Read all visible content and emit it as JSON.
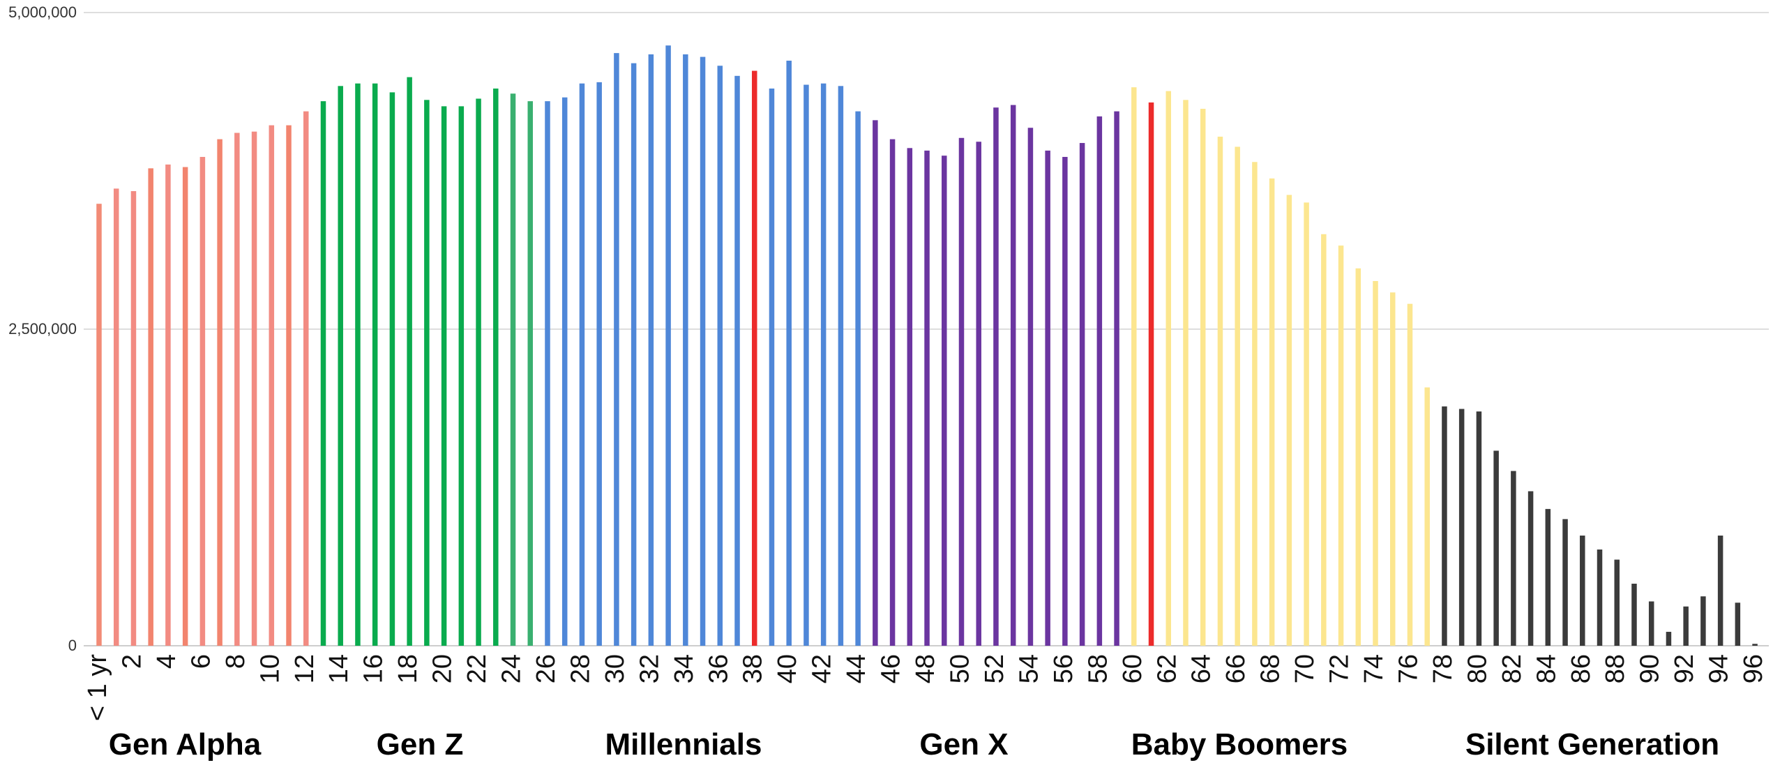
{
  "chart_data": {
    "type": "bar",
    "title": "",
    "xlabel": "",
    "ylabel": "",
    "ylim": [
      0,
      5000000
    ],
    "y_ticks": [
      {
        "value": 0,
        "label": "0"
      },
      {
        "value": 2500000,
        "label": "2,500,000"
      },
      {
        "value": 5000000,
        "label": "5,000,000"
      }
    ],
    "grid": true,
    "first_category_label": "< 1 yr",
    "x_tick_label_every": 2,
    "values": [
      3490000,
      3610000,
      3590000,
      3770000,
      3800000,
      3780000,
      3860000,
      4000000,
      4050000,
      4060000,
      4110000,
      4110000,
      4220000,
      4300000,
      4420000,
      4440000,
      4440000,
      4370000,
      4490000,
      4310000,
      4260000,
      4260000,
      4320000,
      4400000,
      4360000,
      4300000,
      4300000,
      4330000,
      4440000,
      4450000,
      4680000,
      4600000,
      4670000,
      4740000,
      4670000,
      4650000,
      4580000,
      4500000,
      4540000,
      4400000,
      4620000,
      4430000,
      4440000,
      4420000,
      4220000,
      4150000,
      4000000,
      3930000,
      3910000,
      3870000,
      4010000,
      3980000,
      4250000,
      4270000,
      4090000,
      3910000,
      3860000,
      3970000,
      4180000,
      4220000,
      4410000,
      4290000,
      4380000,
      4310000,
      4240000,
      4020000,
      3940000,
      3820000,
      3690000,
      3560000,
      3500000,
      3250000,
      3160000,
      2980000,
      2880000,
      2790000,
      2700000,
      2040000,
      1890000,
      1870000,
      1850000,
      1540000,
      1380000,
      1220000,
      1080000,
      1000000,
      870000,
      760000,
      680000,
      490000,
      350000,
      110000,
      310000,
      390000,
      870000,
      340000,
      15000
    ],
    "colors": [
      "#f28b76",
      "#f28b82",
      "#f28b82",
      "#f2846e",
      "#f28b82",
      "#f2846e",
      "#f28b82",
      "#f2846e",
      "#f28b82",
      "#f28b82",
      "#f28b82",
      "#f2846e",
      "#f28b82",
      "#0aab4e",
      "#0aab4e",
      "#0aab4e",
      "#0aab4e",
      "#0aab4e",
      "#0aab4e",
      "#0aab4e",
      "#0aab4e",
      "#0aab4e",
      "#0aab4e",
      "#0aab4e",
      "#3ab070",
      "#3ab070",
      "#4f87d8",
      "#4f87d8",
      "#4f87d8",
      "#4f87d8",
      "#4f87d8",
      "#4f87d8",
      "#4f87d8",
      "#4f87d8",
      "#4f87d8",
      "#4f87d8",
      "#4f87d8",
      "#4f87d8",
      "#ec2b2b",
      "#4f87d8",
      "#4f87d8",
      "#4f87d8",
      "#4f87d8",
      "#4f87d8",
      "#4f87d8",
      "#6b35a0",
      "#6b35a0",
      "#6b35a0",
      "#6b35a0",
      "#6b35a0",
      "#6b35a0",
      "#6b35a0",
      "#6b35a0",
      "#6b35a0",
      "#6b35a0",
      "#6b35a0",
      "#6b35a0",
      "#6b35a0",
      "#6b35a0",
      "#6b35a0",
      "#fce68f",
      "#ec2b2b",
      "#fce68f",
      "#fce68f",
      "#fce68f",
      "#fce68f",
      "#fce68f",
      "#fce68f",
      "#fce68f",
      "#fce68f",
      "#fce68f",
      "#fce68f",
      "#fce68f",
      "#fce68f",
      "#fce68f",
      "#fce68f",
      "#fce68f",
      "#fce68f",
      "#3b3b3b",
      "#3b3b3b",
      "#3b3b3b",
      "#3b3b3b",
      "#3b3b3b",
      "#3b3b3b",
      "#3b3b3b",
      "#3b3b3b",
      "#3b3b3b",
      "#3b3b3b",
      "#3b3b3b",
      "#3b3b3b",
      "#3b3b3b",
      "#3b3b3b",
      "#3b3b3b",
      "#3b3b3b",
      "#3b3b3b",
      "#3b3b3b",
      "#3b3b3b"
    ],
    "groups": [
      {
        "name": "Gen Alpha",
        "first_index": 0,
        "last_index": 12
      },
      {
        "name": "Gen Z",
        "first_index": 13,
        "last_index": 25
      },
      {
        "name": "Millennials",
        "first_index": 26,
        "last_index": 44
      },
      {
        "name": "Gen X",
        "first_index": 45,
        "last_index": 59
      },
      {
        "name": "Baby Boomers",
        "first_index": 60,
        "last_index": 77
      },
      {
        "name": "Silent Generation",
        "first_index": 78,
        "last_index": 96
      }
    ]
  }
}
